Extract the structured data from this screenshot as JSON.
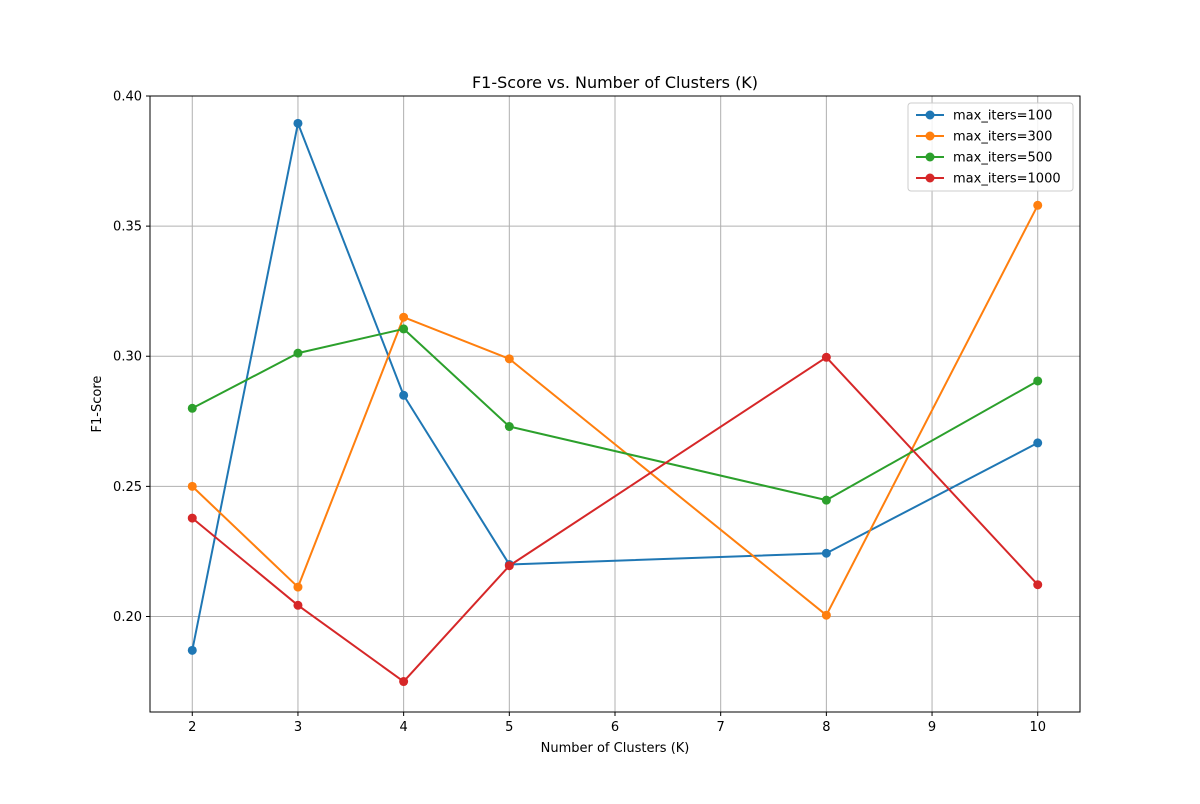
{
  "chart_data": {
    "type": "line",
    "title": "F1-Score vs. Number of Clusters (K)",
    "xlabel": "Number of Clusters (K)",
    "ylabel": "F1-Score",
    "x": [
      2,
      3,
      4,
      5,
      8,
      10
    ],
    "xticks": [
      "2",
      "3",
      "4",
      "5",
      "6",
      "7",
      "8",
      "9",
      "10"
    ],
    "xtick_values": [
      2,
      3,
      4,
      5,
      6,
      7,
      8,
      9,
      10
    ],
    "yticks": [
      "0.20",
      "0.25",
      "0.30",
      "0.35",
      "0.40"
    ],
    "ytick_values": [
      0.2,
      0.25,
      0.3,
      0.35,
      0.4
    ],
    "xlim": [
      1.6,
      10.4
    ],
    "ylim": [
      0.1633,
      0.4
    ],
    "grid": true,
    "legend_position": "top-right",
    "markers": "circle",
    "series": [
      {
        "name": "max_iters=100",
        "color": "#1f77b4",
        "values": [
          0.187,
          0.3895,
          0.285,
          0.22,
          0.2243,
          0.2667
        ]
      },
      {
        "name": "max_iters=300",
        "color": "#ff7f0e",
        "values": [
          0.25,
          0.2113,
          0.315,
          0.299,
          0.2005,
          0.358
        ]
      },
      {
        "name": "max_iters=500",
        "color": "#2ca02c",
        "values": [
          0.28,
          0.3012,
          0.3105,
          0.273,
          0.2447,
          0.2905
        ]
      },
      {
        "name": "max_iters=1000",
        "color": "#d62728",
        "values": [
          0.2378,
          0.2043,
          0.175,
          0.2195,
          0.2996,
          0.2122
        ]
      }
    ]
  }
}
